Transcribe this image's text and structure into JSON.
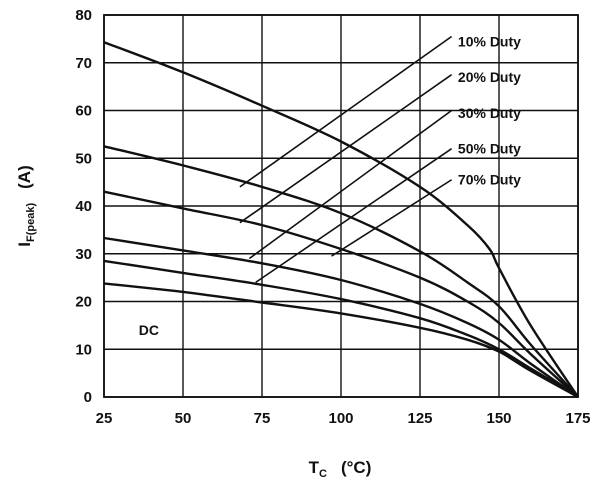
{
  "chart_data": {
    "type": "line",
    "xlabel_main": "T",
    "xlabel_sub": "C",
    "xlabel_unit": "(°C)",
    "ylabel_main": "I",
    "ylabel_sub": "F(peak)",
    "ylabel_unit": "(A)",
    "xlim": [
      25,
      175
    ],
    "ylim": [
      0,
      80
    ],
    "xticks": [
      25,
      50,
      75,
      100,
      125,
      150,
      175
    ],
    "yticks": [
      0,
      10,
      20,
      30,
      40,
      50,
      60,
      70,
      80
    ],
    "grid": true,
    "series": [
      {
        "name": "10% Duty",
        "points": [
          [
            25,
            74.3
          ],
          [
            50,
            68
          ],
          [
            75,
            61
          ],
          [
            100,
            53.5
          ],
          [
            125,
            44
          ],
          [
            140,
            36
          ],
          [
            147,
            31
          ],
          [
            150,
            27
          ],
          [
            160,
            15
          ],
          [
            175,
            0
          ]
        ]
      },
      {
        "name": "20% Duty",
        "points": [
          [
            25,
            52.5
          ],
          [
            50,
            48.5
          ],
          [
            75,
            44
          ],
          [
            100,
            38.5
          ],
          [
            125,
            30.5
          ],
          [
            140,
            24
          ],
          [
            150,
            19
          ],
          [
            160,
            11
          ],
          [
            175,
            0
          ]
        ]
      },
      {
        "name": "30% Duty",
        "points": [
          [
            25,
            43
          ],
          [
            50,
            39.5
          ],
          [
            75,
            36
          ],
          [
            100,
            31
          ],
          [
            125,
            25
          ],
          [
            140,
            20
          ],
          [
            150,
            15.5
          ],
          [
            160,
            9
          ],
          [
            175,
            0
          ]
        ]
      },
      {
        "name": "50% Duty",
        "points": [
          [
            25,
            33.3
          ],
          [
            50,
            30.7
          ],
          [
            75,
            28
          ],
          [
            100,
            24.5
          ],
          [
            125,
            19.5
          ],
          [
            140,
            15.5
          ],
          [
            150,
            12
          ],
          [
            160,
            7
          ],
          [
            175,
            0
          ]
        ]
      },
      {
        "name": "70% Duty",
        "points": [
          [
            25,
            28.5
          ],
          [
            50,
            26
          ],
          [
            75,
            23.5
          ],
          [
            100,
            20.5
          ],
          [
            125,
            16.5
          ],
          [
            140,
            13
          ],
          [
            150,
            10
          ],
          [
            160,
            6
          ],
          [
            175,
            0
          ]
        ]
      },
      {
        "name": "DC",
        "points": [
          [
            25,
            23.8
          ],
          [
            50,
            22
          ],
          [
            75,
            19.8
          ],
          [
            100,
            17.5
          ],
          [
            125,
            14.5
          ],
          [
            140,
            12
          ],
          [
            150,
            9.5
          ],
          [
            160,
            5.5
          ],
          [
            175,
            0
          ]
        ]
      }
    ],
    "legend": [
      {
        "label": "10% Duty",
        "line_from": [
          68,
          44
        ],
        "line_to": [
          135,
          75.5
        ],
        "label_at": [
          137,
          74.5
        ]
      },
      {
        "label": "20% Duty",
        "line_from": [
          68,
          36.5
        ],
        "line_to": [
          135,
          67.5
        ],
        "label_at": [
          137,
          67
        ]
      },
      {
        "label": "30% Duty",
        "line_from": [
          71,
          29
        ],
        "line_to": [
          135,
          60
        ],
        "label_at": [
          137,
          59.5
        ]
      },
      {
        "label": "50% Duty",
        "line_from": [
          73,
          24
        ],
        "line_to": [
          135,
          52
        ],
        "label_at": [
          137,
          52
        ]
      },
      {
        "label": "70% Duty",
        "line_from": [
          97,
          29.5
        ],
        "line_to": [
          135,
          45.5
        ],
        "label_at": [
          137,
          45.5
        ]
      }
    ],
    "annotations": [
      {
        "label": "DC",
        "at": [
          36,
          14
        ]
      }
    ]
  }
}
